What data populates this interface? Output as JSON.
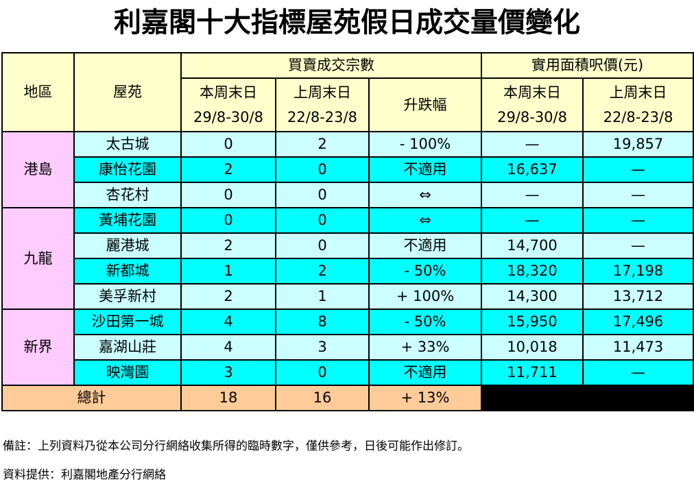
{
  "title": "利嘉閣十大指標屋苑假日成交量價變化",
  "table": {
    "header": {
      "region": "地區",
      "estate": "屋苑",
      "groups": [
        "買賣成交宗數",
        "實用面積呎價(元)"
      ],
      "columns": [
        {
          "name": "本周末日",
          "dates": "29/8-30/8"
        },
        {
          "name": "上周末日",
          "dates": "22/8-23/8"
        },
        {
          "name": "升跌幅"
        },
        {
          "name": "本周末日",
          "dates": "29/8-30/8"
        },
        {
          "name": "上周末日",
          "dates": "22/8-23/8"
        }
      ]
    },
    "sections": [
      {
        "region": "港島",
        "rows": [
          [
            "太古城",
            "0",
            "2",
            "- 100%",
            "—",
            "19,857"
          ],
          [
            "康怡花園",
            "2",
            "0",
            "不適用",
            "16,637",
            "—"
          ],
          [
            "杏花村",
            "0",
            "0",
            "⇔",
            "—",
            "—"
          ]
        ]
      },
      {
        "region": "九龍",
        "rows": [
          [
            "黃埔花園",
            "0",
            "0",
            "⇔",
            "—",
            "—"
          ],
          [
            "麗港城",
            "2",
            "0",
            "不適用",
            "14,700",
            "—"
          ],
          [
            "新都城",
            "1",
            "2",
            "- 50%",
            "18,320",
            "17,198"
          ],
          [
            "美孚新村",
            "2",
            "1",
            "+ 100%",
            "14,300",
            "13,712"
          ]
        ]
      },
      {
        "region": "新界",
        "rows": [
          [
            "沙田第一城",
            "4",
            "8",
            "- 50%",
            "15,950",
            "17,496"
          ],
          [
            "嘉湖山莊",
            "4",
            "3",
            "+ 33%",
            "10,018",
            "11,473"
          ],
          [
            "映灣園",
            "3",
            "0",
            "不適用",
            "11,711",
            "—"
          ]
        ]
      }
    ],
    "total": {
      "label": "總計",
      "values": [
        "18",
        "16",
        "+ 13%"
      ]
    }
  },
  "notes": [
    "備註：上列資料乃從本公司分行網絡收集所得的臨時數字，僅供參考，日後可能作出修訂。",
    "資料提供：利嘉閣地產分行網絡"
  ]
}
